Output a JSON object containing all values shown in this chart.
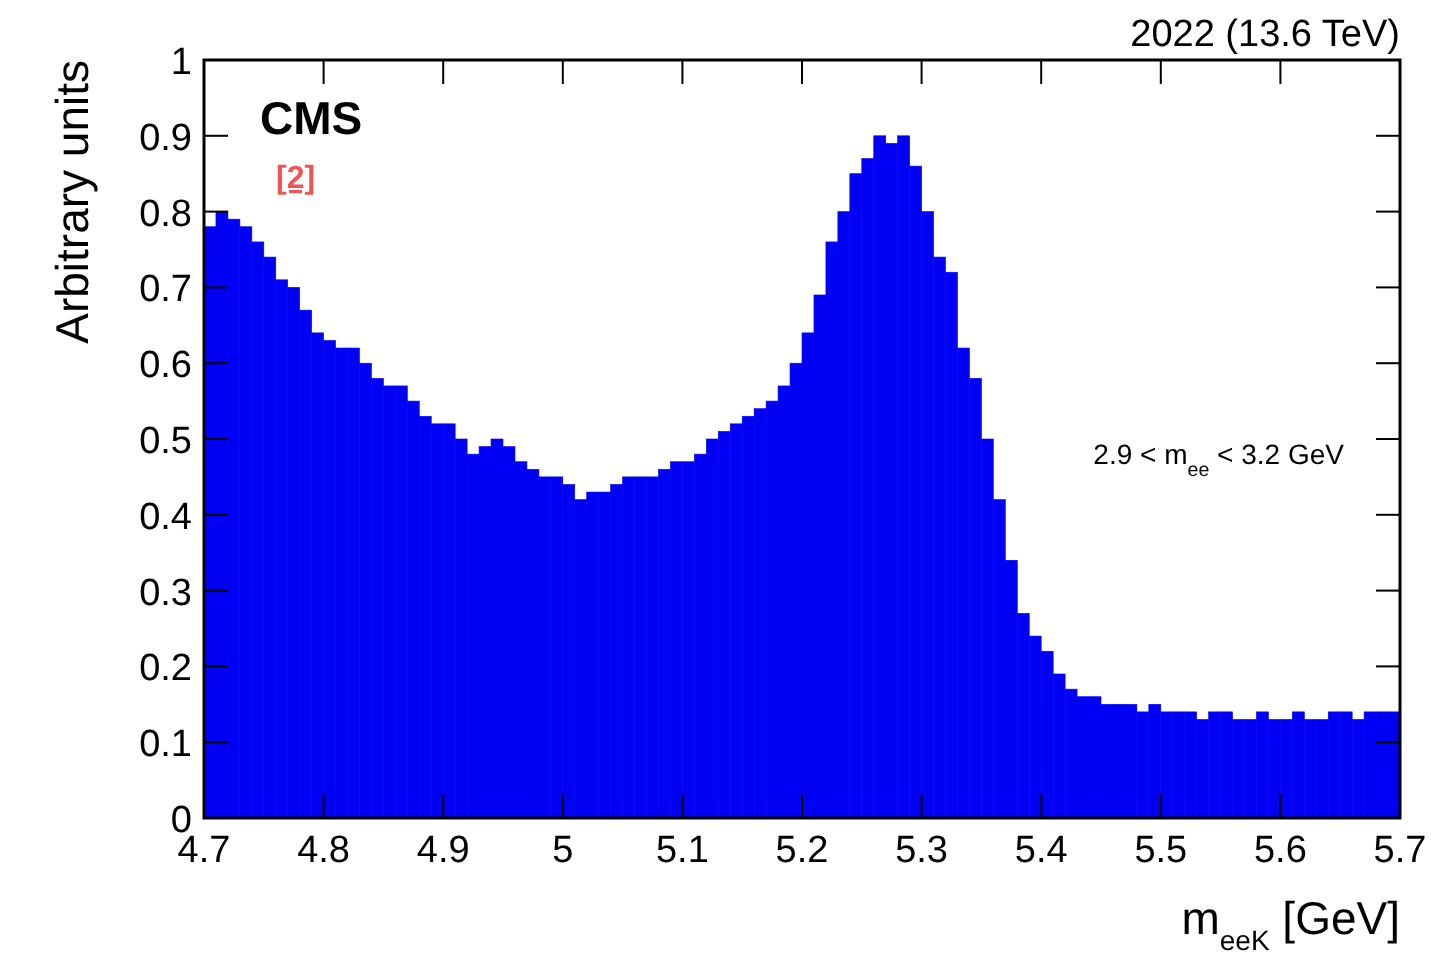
{
  "chart_data": {
    "type": "histogram",
    "xlabel": "m$_{eeK}$ [GeV]",
    "ylabel": "Arbitrary units",
    "annotations": [
      "CMS",
      "[2]",
      "2.9 < m$_{ee}$ < 3.2 GeV",
      "2022 (13.6 TeV)"
    ],
    "color": "#0000f5",
    "bins": [
      4.7,
      4.71,
      4.72,
      4.73,
      4.74,
      4.75,
      4.76,
      4.77,
      4.78,
      4.79,
      4.8,
      4.81,
      4.82,
      4.83,
      4.84,
      4.85,
      4.86,
      4.87,
      4.88,
      4.89,
      4.9,
      4.91,
      4.92,
      4.93,
      4.94,
      4.95,
      4.96,
      4.97,
      4.98,
      4.99,
      5.0,
      5.01,
      5.02,
      5.03,
      5.04,
      5.05,
      5.06,
      5.07,
      5.08,
      5.09,
      5.1,
      5.11,
      5.12,
      5.13,
      5.14,
      5.15,
      5.16,
      5.17,
      5.18,
      5.19,
      5.2,
      5.21,
      5.22,
      5.23,
      5.24,
      5.25,
      5.26,
      5.27,
      5.28,
      5.29,
      5.3,
      5.31,
      5.32,
      5.33,
      5.34,
      5.35,
      5.36,
      5.37,
      5.38,
      5.39,
      5.4,
      5.41,
      5.42,
      5.43,
      5.44,
      5.45,
      5.46,
      5.47,
      5.48,
      5.49,
      5.5,
      5.51,
      5.52,
      5.53,
      5.54,
      5.55,
      5.56,
      5.57,
      5.58,
      5.59,
      5.6,
      5.61,
      5.62,
      5.63,
      5.64,
      5.65,
      5.66,
      5.67,
      5.68,
      5.69,
      5.7
    ],
    "values": [
      0.78,
      0.8,
      0.79,
      0.78,
      0.76,
      0.74,
      0.71,
      0.7,
      0.67,
      0.64,
      0.63,
      0.62,
      0.62,
      0.6,
      0.58,
      0.57,
      0.57,
      0.55,
      0.53,
      0.52,
      0.52,
      0.5,
      0.48,
      0.49,
      0.5,
      0.49,
      0.47,
      0.46,
      0.45,
      0.45,
      0.44,
      0.42,
      0.43,
      0.43,
      0.44,
      0.45,
      0.45,
      0.45,
      0.46,
      0.47,
      0.47,
      0.48,
      0.5,
      0.51,
      0.52,
      0.53,
      0.54,
      0.55,
      0.57,
      0.6,
      0.64,
      0.69,
      0.76,
      0.8,
      0.85,
      0.87,
      0.9,
      0.89,
      0.9,
      0.86,
      0.8,
      0.74,
      0.72,
      0.62,
      0.58,
      0.5,
      0.42,
      0.34,
      0.27,
      0.24,
      0.22,
      0.19,
      0.17,
      0.16,
      0.16,
      0.15,
      0.15,
      0.15,
      0.14,
      0.15,
      0.14,
      0.14,
      0.14,
      0.13,
      0.14,
      0.14,
      0.13,
      0.13,
      0.14,
      0.13,
      0.13,
      0.14,
      0.13,
      0.13,
      0.14,
      0.14,
      0.13,
      0.14,
      0.14,
      0.14
    ],
    "xlim": [
      4.7,
      5.7
    ],
    "ylim": [
      0,
      1
    ],
    "xticks": [
      4.7,
      4.8,
      4.9,
      5,
      5.1,
      5.2,
      5.3,
      5.4,
      5.5,
      5.6,
      5.7
    ],
    "yticks": [
      0,
      0.1,
      0.2,
      0.3,
      0.4,
      0.5,
      0.6,
      0.7,
      0.8,
      0.9,
      1
    ],
    "grid": false
  }
}
